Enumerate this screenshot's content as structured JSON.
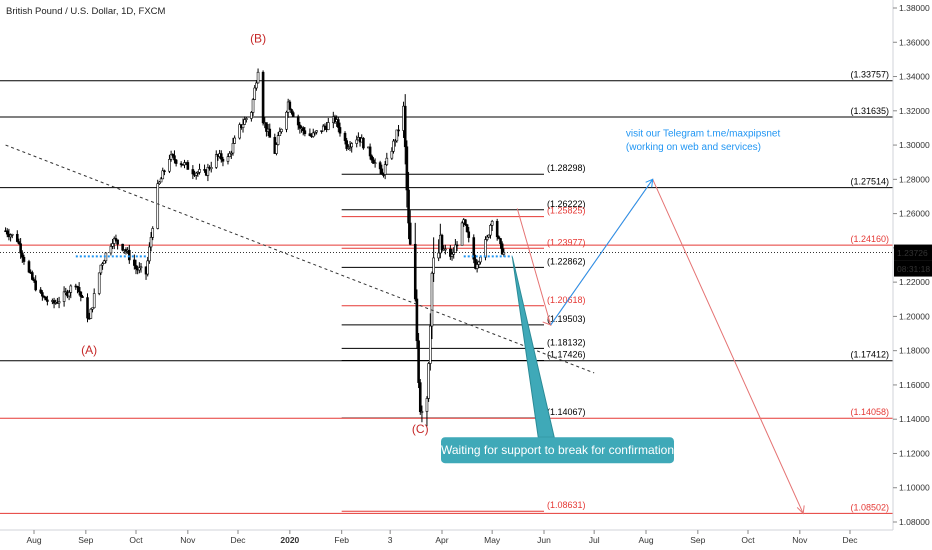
{
  "header": {
    "title": "British Pound / U.S. Dollar, 1D, FXCM"
  },
  "chart_data": {
    "type": "candlestick",
    "title": "British Pound / U.S. Dollar, 1D, FXCM",
    "ylim": [
      1.08,
      1.38
    ],
    "y_ticks": [
      "1.38000",
      "1.36000",
      "1.34000",
      "1.32000",
      "1.30000",
      "1.28000",
      "1.26000",
      "1.24000",
      "1.22000",
      "1.20000",
      "1.18000",
      "1.16000",
      "1.14000",
      "1.12000",
      "1.10000",
      "1.08000"
    ],
    "x_ticks": [
      "Aug",
      "Sep",
      "Oct",
      "Nov",
      "Dec",
      "2020",
      "Feb",
      "3",
      "Apr",
      "May",
      "Jun",
      "Jul",
      "Aug",
      "Sep",
      "Oct",
      "Nov",
      "Dec"
    ],
    "current_price": "1.23726",
    "countdown": "08:31:18",
    "price_path": [
      {
        "d": "2019-07-15",
        "p": 1.25
      },
      {
        "d": "2019-07-22",
        "p": 1.245
      },
      {
        "d": "2019-07-29",
        "p": 1.225
      },
      {
        "d": "2019-08-05",
        "p": 1.212
      },
      {
        "d": "2019-08-12",
        "p": 1.207
      },
      {
        "d": "2019-08-19",
        "p": 1.212
      },
      {
        "d": "2019-08-26",
        "p": 1.22
      },
      {
        "d": "2019-09-03",
        "p": 1.198
      },
      {
        "d": "2019-09-10",
        "p": 1.23
      },
      {
        "d": "2019-09-17",
        "p": 1.245
      },
      {
        "d": "2019-09-24",
        "p": 1.24
      },
      {
        "d": "2019-10-01",
        "p": 1.228
      },
      {
        "d": "2019-10-07",
        "p": 1.225
      },
      {
        "d": "2019-10-14",
        "p": 1.275
      },
      {
        "d": "2019-10-21",
        "p": 1.293
      },
      {
        "d": "2019-10-28",
        "p": 1.29
      },
      {
        "d": "2019-11-04",
        "p": 1.285
      },
      {
        "d": "2019-11-11",
        "p": 1.283
      },
      {
        "d": "2019-11-18",
        "p": 1.293
      },
      {
        "d": "2019-11-25",
        "p": 1.292
      },
      {
        "d": "2019-12-02",
        "p": 1.31
      },
      {
        "d": "2019-12-09",
        "p": 1.32
      },
      {
        "d": "2019-12-13",
        "p": 1.345
      },
      {
        "d": "2019-12-16",
        "p": 1.315
      },
      {
        "d": "2019-12-23",
        "p": 1.296
      },
      {
        "d": "2019-12-31",
        "p": 1.325
      },
      {
        "d": "2020-01-07",
        "p": 1.31
      },
      {
        "d": "2020-01-14",
        "p": 1.305
      },
      {
        "d": "2020-01-21",
        "p": 1.31
      },
      {
        "d": "2020-01-28",
        "p": 1.315
      },
      {
        "d": "2020-02-04",
        "p": 1.3
      },
      {
        "d": "2020-02-11",
        "p": 1.305
      },
      {
        "d": "2020-02-18",
        "p": 1.295
      },
      {
        "d": "2020-02-25",
        "p": 1.282
      },
      {
        "d": "2020-03-02",
        "p": 1.298
      },
      {
        "d": "2020-03-09",
        "p": 1.318
      },
      {
        "d": "2020-03-12",
        "p": 1.25
      },
      {
        "d": "2020-03-16",
        "p": 1.205
      },
      {
        "d": "2020-03-19",
        "p": 1.149
      },
      {
        "d": "2020-03-23",
        "p": 1.155
      },
      {
        "d": "2020-03-26",
        "p": 1.225
      },
      {
        "d": "2020-03-31",
        "p": 1.24
      },
      {
        "d": "2020-04-07",
        "p": 1.235
      },
      {
        "d": "2020-04-14",
        "p": 1.255
      },
      {
        "d": "2020-04-21",
        "p": 1.23
      },
      {
        "d": "2020-04-28",
        "p": 1.245
      },
      {
        "d": "2020-05-01",
        "p": 1.258
      },
      {
        "d": "2020-05-06",
        "p": 1.24
      },
      {
        "d": "2020-05-08",
        "p": 1.237
      }
    ],
    "horizontal_levels": [
      {
        "label": "(1.33757)",
        "value": 1.33757,
        "color": "#000000",
        "side": "right"
      },
      {
        "label": "(1.31635)",
        "value": 1.31635,
        "color": "#000000",
        "side": "right"
      },
      {
        "label": "(1.28298)",
        "value": 1.28298,
        "color": "#000000",
        "side": "mid"
      },
      {
        "label": "(1.27514)",
        "value": 1.27514,
        "color": "#000000",
        "side": "right"
      },
      {
        "label": "(1.26222)",
        "value": 1.26222,
        "color": "#000000",
        "side": "mid"
      },
      {
        "label": "(1.25825)",
        "value": 1.25825,
        "color": "#e53935",
        "side": "mid"
      },
      {
        "label": "(1.23977)",
        "value": 1.23977,
        "color": "#e53935",
        "side": "mid"
      },
      {
        "label": "(1.24160)",
        "value": 1.2416,
        "color": "#e53935",
        "side": "right"
      },
      {
        "label": "(1.22862)",
        "value": 1.22862,
        "color": "#000000",
        "side": "mid"
      },
      {
        "label": "(1.20618)",
        "value": 1.20618,
        "color": "#e53935",
        "side": "mid"
      },
      {
        "label": "(1.19503)",
        "value": 1.19503,
        "color": "#000000",
        "side": "mid"
      },
      {
        "label": "(1.18132)",
        "value": 1.18132,
        "color": "#000000",
        "side": "mid"
      },
      {
        "label": "(1.17426)",
        "value": 1.17426,
        "color": "#000000",
        "side": "mid"
      },
      {
        "label": "(1.17412)",
        "value": 1.17412,
        "color": "#000000",
        "side": "right"
      },
      {
        "label": "(1.14067)",
        "value": 1.14067,
        "color": "#000000",
        "side": "mid"
      },
      {
        "label": "(1.14058)",
        "value": 1.14058,
        "color": "#e53935",
        "side": "right"
      },
      {
        "label": "(1.08631)",
        "value": 1.08631,
        "color": "#e53935",
        "side": "mid"
      },
      {
        "label": "(1.08502)",
        "value": 1.08502,
        "color": "#e53935",
        "side": "right"
      }
    ],
    "wave_labels": [
      {
        "text": "(A)",
        "d": "2019-09-03",
        "p": 1.178
      },
      {
        "text": "(B)",
        "d": "2019-12-13",
        "p": 1.36
      },
      {
        "text": "(C)",
        "d": "2020-03-19",
        "p": 1.132
      }
    ],
    "trendline": {
      "from": {
        "d": "2019-07-15",
        "p": 1.3
      },
      "to": {
        "d": "2020-07-01",
        "p": 1.167
      }
    },
    "projection_blue": [
      {
        "d": "2020-06-05",
        "p": 1.195
      },
      {
        "d": "2020-08-05",
        "p": 1.28
      }
    ],
    "projection_red": [
      {
        "d": "2020-05-16",
        "p": 1.263
      },
      {
        "d": "2020-06-05",
        "p": 1.195
      },
      {
        "d": "2020-08-05",
        "p": 1.28
      },
      {
        "d": "2020-11-03",
        "p": 1.085
      }
    ],
    "support_dots": {
      "d1": "2020-04-14",
      "d2": "2020-05-13",
      "p": 1.2385
    },
    "support_dots_left": {
      "d1": "2019-08-26",
      "d2": "2019-10-07",
      "p": 1.2385
    },
    "annotations": {
      "telegram_line1": "visit our Telegram t.me/maxpipsnet",
      "telegram_line2": "(working on web and services)",
      "callout": "Waiting for support to break for confirmation"
    }
  },
  "colors": {
    "bull": "#000000",
    "bear": "#000000",
    "red": "#e53935",
    "blue": "#2196f3",
    "teal": "#26a69a",
    "callout_bg": "#3fa9b8",
    "grid": "#f0f3fa"
  }
}
